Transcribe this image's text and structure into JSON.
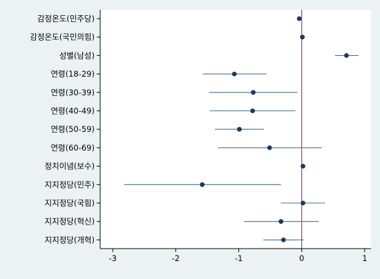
{
  "chart_data": {
    "type": "scatter",
    "subtype": "coefficient-plot",
    "categories": [
      "감정온도(민주당)",
      "감정온도(국민의힘)",
      "성별(남성)",
      "연령(18-29)",
      "연령(30-39)",
      "연령(40-49)",
      "연령(50-59)",
      "연령(60-69)",
      "정치이념(보수)",
      "지지정당(민주)",
      "지지정당(국힘)",
      "지지정당(혁신)",
      "지지정당(개혁)"
    ],
    "estimates": [
      -0.04,
      0.01,
      0.71,
      -1.07,
      -0.77,
      -0.78,
      -0.99,
      -0.51,
      0.02,
      -1.58,
      0.02,
      -0.33,
      -0.29
    ],
    "ci_lower": [
      -0.05,
      0.0,
      0.53,
      -1.57,
      -1.47,
      -1.46,
      -1.38,
      -1.33,
      0.01,
      -2.82,
      -0.33,
      -0.92,
      -0.61
    ],
    "ci_upper": [
      -0.03,
      0.02,
      0.9,
      -0.56,
      -0.07,
      -0.1,
      -0.6,
      0.32,
      0.03,
      -0.33,
      0.37,
      0.27,
      0.03
    ],
    "xlim": [
      -3.2,
      1.1
    ],
    "xticks": [
      -3,
      -2,
      -1,
      0,
      1
    ],
    "reference_line": 0,
    "grid": false,
    "title": "",
    "xlabel": "",
    "ylabel": ""
  },
  "colors": {
    "background": "#eaf2f3",
    "plot_background": "#ffffff",
    "marker": "#1a3a5c",
    "ci_line": "#4f6f86",
    "reference_line": "#8b1a5e",
    "axis": "#000000"
  }
}
